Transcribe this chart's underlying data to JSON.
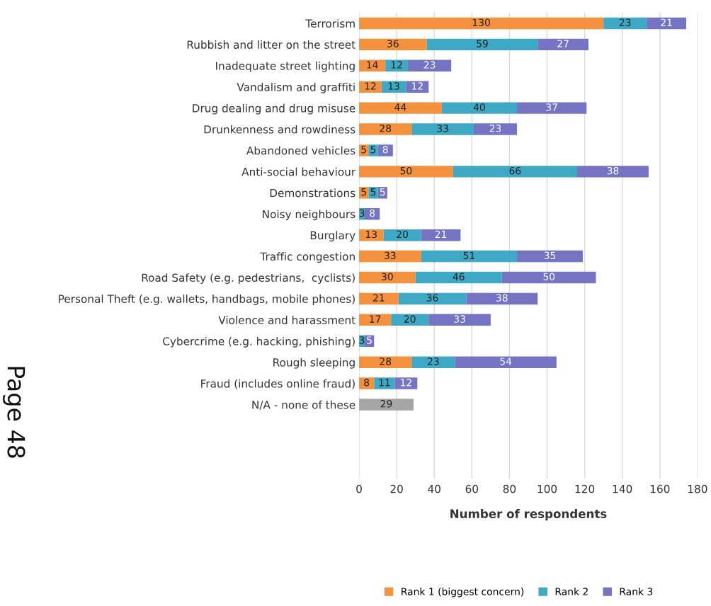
{
  "chart_data": {
    "type": "bar",
    "orientation": "horizontal",
    "stacked": true,
    "categories": [
      "Terrorism",
      "Rubbish and litter on the street",
      "Inadequate street lighting",
      "Vandalism and graffiti",
      "Drug dealing and drug misuse",
      "Drunkenness and rowdiness",
      "Abandoned vehicles",
      "Anti-social behaviour",
      "Demonstrations",
      "Noisy neighbours",
      "Burglary",
      "Traffic congestion",
      "Road Safety (e.g. pedestrians,  cyclists)",
      "Personal Theft (e.g. wallets, handbags, mobile phones)",
      "Violence and harassment",
      "Cybercrime (e.g. hacking, phishing)",
      "Rough sleeping",
      "Fraud (includes online fraud)",
      "N/A - none of these"
    ],
    "series": [
      {
        "name": "Rank 1 (biggest concern)",
        "color": "#f4913f",
        "values": [
          130,
          36,
          14,
          12,
          44,
          28,
          5,
          50,
          5,
          null,
          13,
          33,
          30,
          21,
          17,
          null,
          28,
          8,
          null
        ]
      },
      {
        "name": "Rank 2",
        "color": "#3fa9c5",
        "values": [
          23,
          59,
          12,
          13,
          40,
          33,
          5,
          66,
          5,
          3,
          20,
          51,
          46,
          36,
          20,
          3,
          23,
          11,
          null
        ]
      },
      {
        "name": "Rank 3",
        "color": "#7474c2",
        "values": [
          21,
          27,
          23,
          12,
          37,
          23,
          8,
          38,
          5,
          8,
          21,
          35,
          50,
          38,
          33,
          5,
          54,
          12,
          null
        ]
      },
      {
        "color": "#a6a6a6",
        "values": [
          null,
          null,
          null,
          null,
          null,
          null,
          null,
          null,
          null,
          null,
          null,
          null,
          null,
          null,
          null,
          null,
          null,
          null,
          29
        ]
      }
    ],
    "xlabel": "Number of respondents",
    "xlim": [
      0,
      180
    ],
    "xticks": [
      0,
      20,
      40,
      60,
      80,
      100,
      120,
      140,
      160,
      180
    ],
    "grid": "x",
    "legend": "bottom",
    "data_labels": true,
    "annotations": [
      "Page 48"
    ]
  }
}
